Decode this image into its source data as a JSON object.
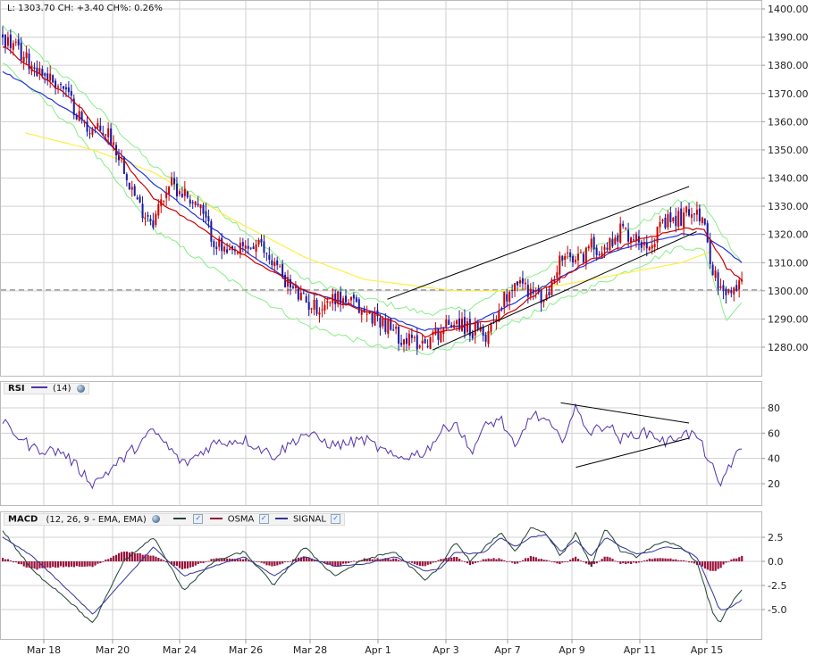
{
  "header": {
    "quote": "L: 1303.70 CH: +3.40 CH%: 0.26%"
  },
  "rsi_panel": {
    "tag": "RSI",
    "period": "(14)"
  },
  "macd_panel": {
    "tag": "MACD",
    "params": "(12, 26, 9 - EMA, EMA)",
    "legend": [
      "",
      "OSMA",
      "SIGNAL"
    ]
  },
  "colors": {
    "up_candle": "#cc0000",
    "down_candle": "#1a1aa0",
    "ma_fast": "#cc0000",
    "ma_mid": "#2233dd",
    "ma_slow": "#ffee44",
    "envelope": "#88ee88",
    "rsi_line": "#5533aa",
    "macd_line": "#224433",
    "signal_line": "#333399",
    "osma": "#99113a",
    "grid": "#d0d0d0",
    "trend": "#000000"
  },
  "chart_data": [
    {
      "type": "line",
      "name": "price",
      "ylim": [
        1275,
        1402
      ],
      "yticks": [
        1280,
        1290,
        1300,
        1310,
        1320,
        1330,
        1340,
        1350,
        1360,
        1370,
        1380,
        1390,
        1400
      ],
      "x_labels": [
        "Mar 18",
        "Mar 20",
        "Mar 24",
        "Mar 26",
        "Mar 28",
        "Apr 1",
        "Apr 3",
        "Apr 7",
        "Apr 9",
        "Apr 11",
        "Apr 15"
      ],
      "last": 1303.7,
      "close_path": [
        [
          0,
          1390
        ],
        [
          4,
          1380
        ],
        [
          8,
          1372
        ],
        [
          11,
          1358
        ],
        [
          14,
          1356
        ],
        [
          16,
          1345
        ],
        [
          18,
          1330
        ],
        [
          20,
          1325
        ],
        [
          22,
          1338
        ],
        [
          24,
          1335
        ],
        [
          26,
          1330
        ],
        [
          28,
          1318
        ],
        [
          30,
          1312
        ],
        [
          32,
          1315
        ],
        [
          34,
          1316
        ],
        [
          36,
          1310
        ],
        [
          38,
          1302
        ],
        [
          40,
          1296
        ],
        [
          42,
          1294
        ],
        [
          44,
          1298
        ],
        [
          46,
          1296
        ],
        [
          48,
          1292
        ],
        [
          50,
          1290
        ],
        [
          52,
          1285
        ],
        [
          54,
          1282
        ],
        [
          56,
          1282
        ],
        [
          58,
          1286
        ],
        [
          60,
          1290
        ],
        [
          62,
          1286
        ],
        [
          64,
          1284
        ],
        [
          66,
          1295
        ],
        [
          68,
          1304
        ],
        [
          70,
          1300
        ],
        [
          72,
          1296
        ],
        [
          74,
          1312
        ],
        [
          76,
          1310
        ],
        [
          78,
          1316
        ],
        [
          80,
          1315
        ],
        [
          82,
          1322
        ],
        [
          84,
          1318
        ],
        [
          86,
          1318
        ],
        [
          88,
          1324
        ],
        [
          90,
          1326
        ],
        [
          92,
          1330
        ],
        [
          93,
          1322
        ],
        [
          94,
          1310
        ],
        [
          95,
          1300
        ],
        [
          96,
          1298
        ],
        [
          97,
          1300
        ],
        [
          98,
          1303.7
        ]
      ],
      "ma_fast_path": [
        [
          0,
          1387
        ],
        [
          10,
          1366
        ],
        [
          20,
          1333
        ],
        [
          30,
          1316
        ],
        [
          40,
          1300
        ],
        [
          50,
          1291
        ],
        [
          56,
          1284
        ],
        [
          62,
          1288
        ],
        [
          66,
          1290
        ],
        [
          72,
          1301
        ],
        [
          78,
          1311
        ],
        [
          84,
          1318
        ],
        [
          90,
          1322
        ],
        [
          93,
          1322
        ],
        [
          96,
          1308
        ],
        [
          98,
          1304
        ]
      ],
      "ma_mid_path": [
        [
          0,
          1378
        ],
        [
          10,
          1362
        ],
        [
          20,
          1338
        ],
        [
          30,
          1318
        ],
        [
          40,
          1300
        ],
        [
          50,
          1292
        ],
        [
          56,
          1286
        ],
        [
          62,
          1288
        ],
        [
          68,
          1296
        ],
        [
          74,
          1305
        ],
        [
          82,
          1315
        ],
        [
          90,
          1320
        ],
        [
          93,
          1320
        ],
        [
          97,
          1312
        ],
        [
          98,
          1310
        ]
      ],
      "ma_slow_path": [
        [
          3,
          1356
        ],
        [
          12,
          1350
        ],
        [
          20,
          1342
        ],
        [
          30,
          1326
        ],
        [
          40,
          1312
        ],
        [
          48,
          1304
        ],
        [
          54,
          1302
        ],
        [
          60,
          1300
        ],
        [
          66,
          1300
        ],
        [
          74,
          1302
        ],
        [
          82,
          1306
        ],
        [
          90,
          1310
        ],
        [
          94,
          1314
        ]
      ],
      "envelope_upper": [
        [
          0,
          1394
        ],
        [
          10,
          1372
        ],
        [
          20,
          1344
        ],
        [
          30,
          1326
        ],
        [
          40,
          1304
        ],
        [
          50,
          1296
        ],
        [
          56,
          1292
        ],
        [
          62,
          1294
        ],
        [
          72,
          1308
        ],
        [
          82,
          1320
        ],
        [
          90,
          1332
        ],
        [
          93,
          1330
        ],
        [
          98,
          1310
        ]
      ],
      "envelope_lower": [
        [
          0,
          1381
        ],
        [
          10,
          1356
        ],
        [
          20,
          1322
        ],
        [
          30,
          1304
        ],
        [
          40,
          1288
        ],
        [
          50,
          1280
        ],
        [
          56,
          1278
        ],
        [
          62,
          1282
        ],
        [
          72,
          1294
        ],
        [
          82,
          1306
        ],
        [
          90,
          1316
        ],
        [
          93,
          1314
        ],
        [
          96,
          1290
        ],
        [
          98,
          1296
        ]
      ],
      "trendlines": [
        {
          "from": [
            51,
            1297
          ],
          "to": [
            91,
            1337
          ]
        },
        {
          "from": [
            57,
            1279
          ],
          "to": [
            92,
            1321
          ]
        }
      ],
      "reference_level": 1300.3
    },
    {
      "type": "line",
      "name": "RSI",
      "ylim": [
        10,
        90
      ],
      "yticks": [
        20,
        40,
        60,
        80
      ],
      "path": [
        [
          0,
          68
        ],
        [
          4,
          48
        ],
        [
          8,
          45
        ],
        [
          12,
          20
        ],
        [
          16,
          40
        ],
        [
          20,
          62
        ],
        [
          24,
          35
        ],
        [
          28,
          52
        ],
        [
          32,
          55
        ],
        [
          36,
          42
        ],
        [
          40,
          60
        ],
        [
          44,
          50
        ],
        [
          48,
          55
        ],
        [
          52,
          40
        ],
        [
          56,
          45
        ],
        [
          58,
          60
        ],
        [
          60,
          70
        ],
        [
          62,
          45
        ],
        [
          64,
          65
        ],
        [
          66,
          72
        ],
        [
          68,
          46
        ],
        [
          70,
          75
        ],
        [
          72,
          70
        ],
        [
          74,
          54
        ],
        [
          76,
          79
        ],
        [
          78,
          60
        ],
        [
          80,
          68
        ],
        [
          82,
          55
        ],
        [
          84,
          60
        ],
        [
          86,
          60
        ],
        [
          88,
          52
        ],
        [
          90,
          60
        ],
        [
          92,
          58
        ],
        [
          94,
          35
        ],
        [
          95,
          15
        ],
        [
          96,
          32
        ],
        [
          98,
          47
        ]
      ],
      "trendlines": [
        {
          "from": [
            74,
            84
          ],
          "to": [
            91,
            68
          ]
        },
        {
          "from": [
            76,
            33
          ],
          "to": [
            91,
            56
          ]
        }
      ]
    },
    {
      "type": "bar",
      "name": "MACD",
      "ylim": [
        -7.5,
        4
      ],
      "yticks": [
        2.5,
        0.0,
        -2.5,
        -5.0
      ],
      "macd_path": [
        [
          0,
          3.2
        ],
        [
          4,
          -1
        ],
        [
          8,
          -3.5
        ],
        [
          12,
          -6.5
        ],
        [
          16,
          0
        ],
        [
          20,
          2.5
        ],
        [
          24,
          -3
        ],
        [
          28,
          0
        ],
        [
          32,
          1
        ],
        [
          36,
          -2.5
        ],
        [
          40,
          1.5
        ],
        [
          44,
          -1.5
        ],
        [
          48,
          0.2
        ],
        [
          52,
          1
        ],
        [
          56,
          -2
        ],
        [
          58,
          -0.5
        ],
        [
          60,
          2
        ],
        [
          62,
          0
        ],
        [
          64,
          1.5
        ],
        [
          66,
          3.0
        ],
        [
          68,
          1
        ],
        [
          70,
          3.5
        ],
        [
          72,
          3
        ],
        [
          74,
          0.5
        ],
        [
          76,
          3
        ],
        [
          78,
          -0.5
        ],
        [
          80,
          3.5
        ],
        [
          82,
          1
        ],
        [
          84,
          0.5
        ],
        [
          86,
          1.5
        ],
        [
          88,
          2
        ],
        [
          90,
          1.5
        ],
        [
          92,
          0
        ],
        [
          94,
          -5
        ],
        [
          95,
          -6.5
        ],
        [
          96,
          -5
        ],
        [
          98,
          -3
        ]
      ],
      "signal_path": [
        [
          0,
          2.5
        ],
        [
          4,
          0.5
        ],
        [
          8,
          -2.5
        ],
        [
          12,
          -5.5
        ],
        [
          16,
          -2
        ],
        [
          20,
          1.5
        ],
        [
          24,
          -1.5
        ],
        [
          28,
          -0.5
        ],
        [
          32,
          0.5
        ],
        [
          36,
          -1.5
        ],
        [
          40,
          0.5
        ],
        [
          44,
          -0.5
        ],
        [
          48,
          -0.3
        ],
        [
          52,
          0.5
        ],
        [
          56,
          -1
        ],
        [
          58,
          -0.8
        ],
        [
          60,
          1
        ],
        [
          62,
          0.8
        ],
        [
          64,
          1
        ],
        [
          66,
          2.5
        ],
        [
          68,
          1.5
        ],
        [
          70,
          2.5
        ],
        [
          72,
          2.8
        ],
        [
          74,
          1
        ],
        [
          76,
          2.2
        ],
        [
          78,
          0.5
        ],
        [
          80,
          2.5
        ],
        [
          82,
          1.5
        ],
        [
          84,
          0.8
        ],
        [
          86,
          1
        ],
        [
          88,
          1.5
        ],
        [
          90,
          1.3
        ],
        [
          92,
          0.5
        ],
        [
          94,
          -3
        ],
        [
          95,
          -5
        ],
        [
          96,
          -5
        ],
        [
          98,
          -4
        ]
      ]
    }
  ]
}
